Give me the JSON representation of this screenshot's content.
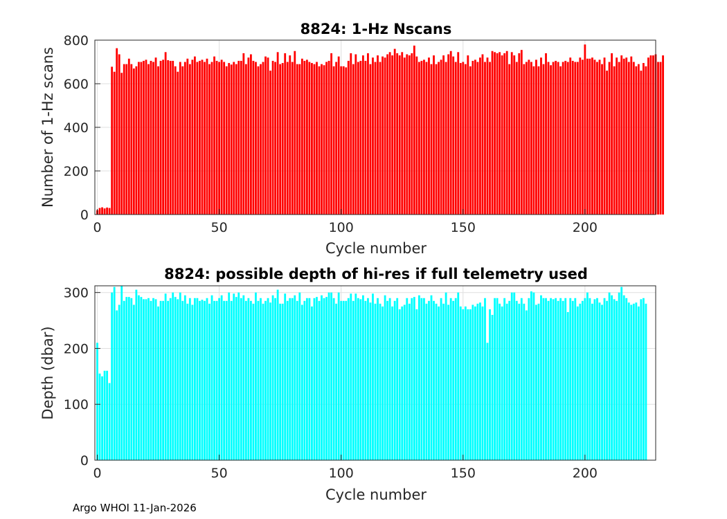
{
  "footer": "Argo WHOI 11-Jan-2026",
  "colors": {
    "axis": "#262626",
    "grid": "#dfdfdf",
    "bars_top": "#ff0000",
    "bars_bottom": "#00ffff"
  },
  "chart_data": [
    {
      "type": "bar",
      "title": "8824: 1-Hz Nscans",
      "xlabel": "Cycle number",
      "ylabel": "Number of 1-Hz scans",
      "xlim": [
        -1,
        229
      ],
      "ylim": [
        0,
        800
      ],
      "xticks": [
        0,
        50,
        100,
        150,
        200
      ],
      "yticks": [
        0,
        200,
        400,
        600,
        800
      ],
      "grid": "on",
      "color": "#ff0000",
      "x_start": 0,
      "values": [
        20,
        30,
        33,
        28,
        32,
        30,
        678,
        655,
        763,
        735,
        650,
        690,
        690,
        715,
        690,
        670,
        680,
        700,
        700,
        705,
        710,
        690,
        705,
        700,
        720,
        680,
        705,
        710,
        745,
        708,
        705,
        705,
        680,
        655,
        700,
        680,
        700,
        715,
        690,
        710,
        725,
        700,
        705,
        710,
        700,
        715,
        690,
        700,
        725,
        705,
        700,
        710,
        700,
        680,
        695,
        688,
        700,
        690,
        705,
        705,
        740,
        690,
        720,
        735,
        705,
        700,
        680,
        690,
        700,
        725,
        720,
        660,
        705,
        700,
        745,
        690,
        695,
        740,
        700,
        730,
        700,
        750,
        690,
        690,
        715,
        705,
        710,
        700,
        695,
        690,
        700,
        680,
        690,
        685,
        700,
        705,
        740,
        680,
        700,
        725,
        680,
        680,
        675,
        705,
        740,
        690,
        735,
        700,
        705,
        730,
        705,
        740,
        690,
        720,
        700,
        730,
        700,
        725,
        720,
        735,
        745,
        730,
        760,
        740,
        730,
        745,
        720,
        735,
        730,
        740,
        775,
        725,
        700,
        705,
        710,
        700,
        720,
        690,
        730,
        690,
        700,
        710,
        730,
        700,
        735,
        750,
        725,
        700,
        745,
        695,
        700,
        690,
        730,
        680,
        705,
        710,
        700,
        720,
        735,
        700,
        720,
        700,
        750,
        745,
        740,
        745,
        730,
        740,
        750,
        690,
        745,
        730,
        700,
        740,
        755,
        690,
        700,
        710,
        700,
        680,
        710,
        680,
        720,
        690,
        740,
        700,
        685,
        700,
        705,
        700,
        680,
        700,
        705,
        700,
        720,
        705,
        700,
        700,
        720,
        710,
        780,
        715,
        715,
        720,
        710,
        700,
        710,
        690,
        720,
        660,
        700,
        740,
        680,
        720,
        700,
        730,
        715,
        720,
        700,
        725,
        700,
        680,
        690,
        660,
        695,
        680,
        720,
        730,
        730,
        735,
        700,
        700,
        730
      ],
      "values_note": ""
    },
    {
      "type": "bar",
      "title": "8824: possible depth of hi-res if full telemetry used",
      "xlabel": "Cycle number",
      "ylabel": "Depth (dbar)",
      "xlim": [
        -1,
        229
      ],
      "ylim": [
        0,
        312
      ],
      "xticks": [
        0,
        50,
        100,
        150,
        200
      ],
      "yticks": [
        0,
        100,
        200,
        300
      ],
      "grid": "on",
      "color": "#00ffff",
      "x_start": 0,
      "values": [
        210,
        155,
        150,
        160,
        160,
        138,
        300,
        310,
        268,
        278,
        312,
        285,
        292,
        292,
        290,
        278,
        305,
        295,
        292,
        288,
        288,
        290,
        285,
        290,
        288,
        275,
        285,
        285,
        298,
        285,
        290,
        300,
        292,
        288,
        300,
        285,
        295,
        280,
        290,
        278,
        290,
        290,
        285,
        287,
        285,
        290,
        280,
        295,
        285,
        285,
        290,
        295,
        285,
        285,
        300,
        285,
        298,
        292,
        300,
        290,
        295,
        285,
        290,
        285,
        280,
        300,
        285,
        290,
        280,
        285,
        290,
        282,
        295,
        290,
        305,
        280,
        280,
        298,
        285,
        290,
        290,
        295,
        285,
        300,
        278,
        285,
        290,
        290,
        275,
        290,
        292,
        285,
        295,
        290,
        292,
        300,
        300,
        290,
        280,
        300,
        285,
        285,
        285,
        290,
        298,
        285,
        298,
        290,
        288,
        295,
        285,
        290,
        282,
        298,
        280,
        290,
        280,
        275,
        295,
        285,
        290,
        275,
        285,
        290,
        270,
        275,
        278,
        290,
        280,
        290,
        292,
        270,
        295,
        290,
        290,
        280,
        285,
        295,
        285,
        280,
        275,
        290,
        280,
        300,
        278,
        290,
        285,
        290,
        300,
        275,
        270,
        275,
        270,
        270,
        278,
        275,
        280,
        282,
        275,
        290,
        210,
        270,
        260,
        290,
        290,
        280,
        275,
        290,
        280,
        285,
        300,
        300,
        285,
        280,
        290,
        280,
        268,
        290,
        302,
        300,
        278,
        280,
        295,
        290,
        290,
        285,
        290,
        288,
        290,
        285,
        290,
        285,
        290,
        265,
        290,
        285,
        290,
        275,
        280,
        285,
        290,
        300,
        290,
        280,
        288,
        290,
        282,
        278,
        290,
        285,
        300,
        295,
        288,
        285,
        300,
        310,
        295,
        290,
        282,
        278,
        280,
        282,
        275,
        288,
        290,
        280
      ]
    }
  ]
}
